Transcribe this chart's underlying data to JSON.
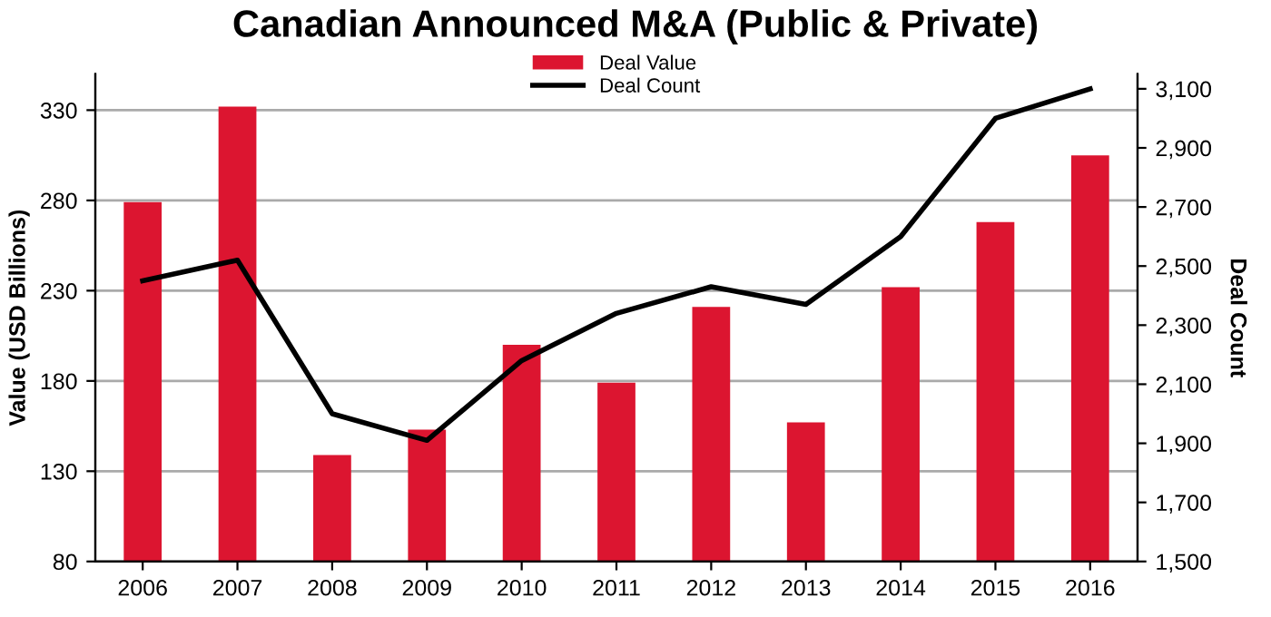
{
  "chart_data": {
    "type": "bar",
    "title": "Canadian Announced M&A (Public & Private)",
    "ylabel": "Value (USD Billions)",
    "y2label": "Deal Count",
    "categories": [
      "2006",
      "2007",
      "2008",
      "2009",
      "2010",
      "2011",
      "2012",
      "2013",
      "2014",
      "2015",
      "2016"
    ],
    "series": [
      {
        "name": "Deal Value",
        "color": "#dc1530",
        "values": [
          279,
          332,
          139,
          153,
          200,
          179,
          221,
          157,
          232,
          268,
          305
        ]
      },
      {
        "name": "Deal Count",
        "type": "line",
        "axis": "y2",
        "color": "#000000",
        "values": [
          2450,
          2520,
          2000,
          1910,
          2180,
          2340,
          2430,
          2370,
          2600,
          3000,
          3100
        ]
      }
    ],
    "ylim": [
      80,
      350
    ],
    "yticks": [
      80,
      130,
      180,
      230,
      280,
      330
    ],
    "y2lim": [
      1500,
      3150
    ],
    "y2ticks": [
      {
        "value": 1500,
        "label": "1,500"
      },
      {
        "value": 1700,
        "label": "1,700"
      },
      {
        "value": 1900,
        "label": "1,900"
      },
      {
        "value": 2100,
        "label": "2,100"
      },
      {
        "value": 2300,
        "label": "2,300"
      },
      {
        "value": 2500,
        "label": "2,500"
      },
      {
        "value": 2700,
        "label": "2,700"
      },
      {
        "value": 2900,
        "label": "2,900"
      },
      {
        "value": 3100,
        "label": "3,100"
      }
    ],
    "grid": "y",
    "legend": "top",
    "marker": "none",
    "line_style": "solid"
  }
}
